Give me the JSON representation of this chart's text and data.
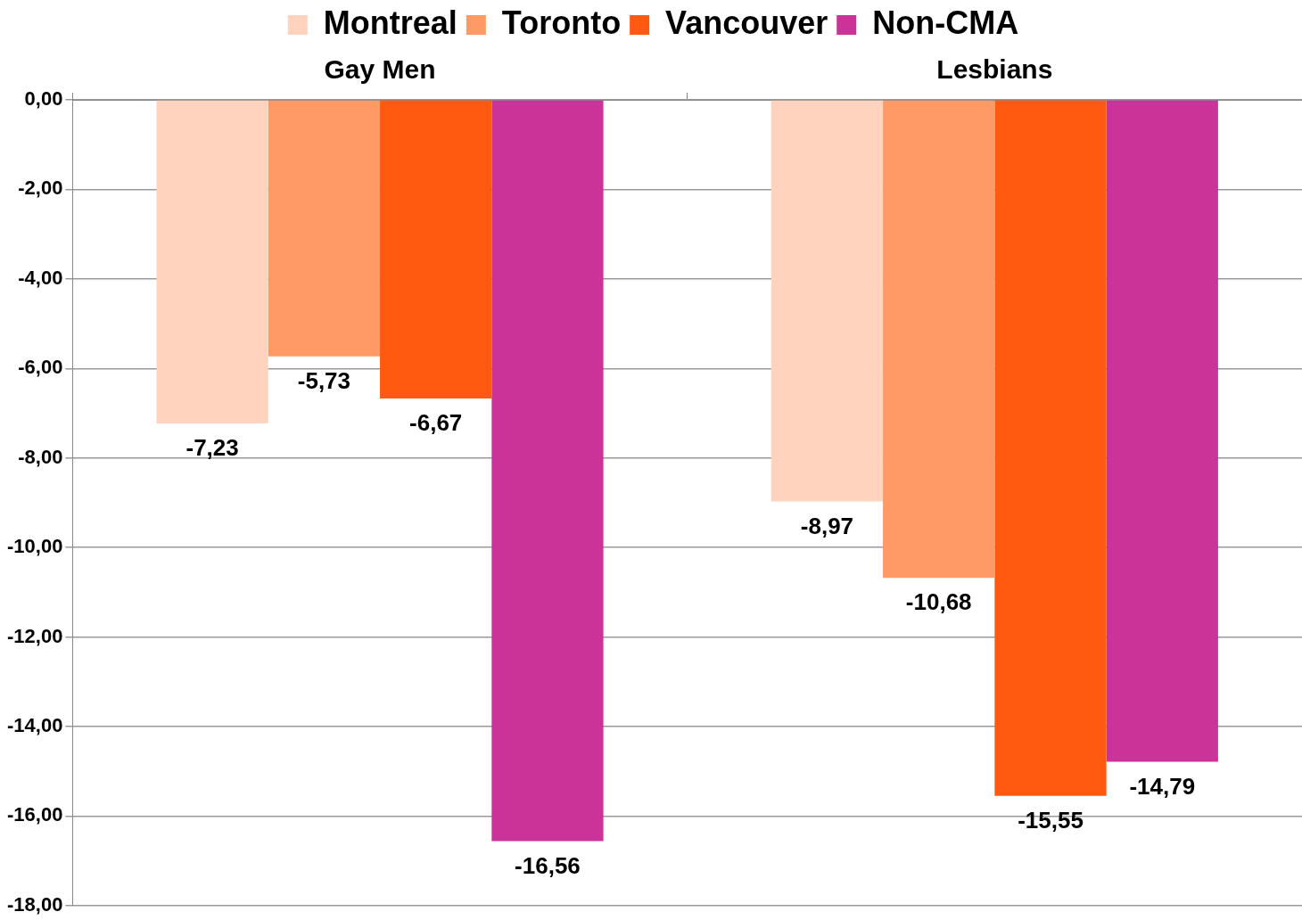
{
  "chart_data": {
    "type": "bar",
    "categories": [
      "Gay Men",
      "Lesbians"
    ],
    "series": [
      {
        "name": "Montreal",
        "color": "#ffd3bd",
        "values": [
          -7.23,
          -8.97
        ],
        "value_labels": [
          "-7,23",
          "-8,97"
        ]
      },
      {
        "name": "Toronto",
        "color": "#ff9966",
        "values": [
          -5.73,
          -10.68
        ],
        "value_labels": [
          "-5,73",
          "-10,68"
        ]
      },
      {
        "name": "Vancouver",
        "color": "#ff5a0f",
        "values": [
          -6.67,
          -15.55
        ],
        "value_labels": [
          "-6,67",
          "-15,55"
        ]
      },
      {
        "name": "Non-CMA",
        "color": "#cc3399",
        "values": [
          -16.56,
          -14.79
        ],
        "value_labels": [
          "-16,56",
          "-14,79"
        ]
      }
    ],
    "ylim": [
      -18,
      0
    ],
    "yticks": [
      {
        "value": 0,
        "label": "0,00"
      },
      {
        "value": -2,
        "label": "-2,00"
      },
      {
        "value": -4,
        "label": "-4,00"
      },
      {
        "value": -6,
        "label": "-6,00"
      },
      {
        "value": -8,
        "label": "-8,00"
      },
      {
        "value": -10,
        "label": "-10,00"
      },
      {
        "value": -12,
        "label": "-12,00"
      },
      {
        "value": -14,
        "label": "-14,00"
      },
      {
        "value": -16,
        "label": "-16,00"
      },
      {
        "value": -18,
        "label": "-18,00"
      }
    ],
    "grid": "y",
    "legend": "top"
  }
}
